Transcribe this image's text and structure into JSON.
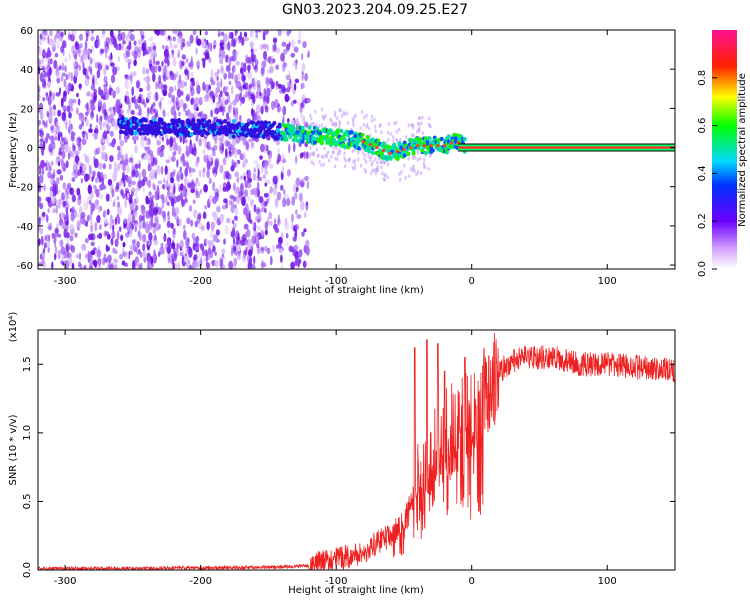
{
  "title": "GN03.2023.204.09.25.E27",
  "colors": {
    "spectrogram_scatter": "#7a22e8",
    "spectrogram_band": "#00ff66",
    "spectrogram_core": "#ff3030",
    "snr_line": "#ee2020"
  },
  "chart_data": [
    {
      "type": "heatmap",
      "xlabel": "Height of straight line (km)",
      "ylabel": "Frequency (Hz)",
      "xlim": [
        -320,
        150
      ],
      "ylim": [
        -62,
        60
      ],
      "x_ticks": [
        -300,
        -200,
        -100,
        0,
        100
      ],
      "x_tick_labels": [
        "-300",
        "-200",
        "-100",
        "0",
        "100"
      ],
      "y_ticks": [
        -60,
        -40,
        -20,
        0,
        20,
        40,
        60
      ],
      "y_tick_labels": [
        "-60",
        "-40",
        "-20",
        "0",
        "20",
        "40",
        "60"
      ],
      "colorbar": {
        "label": "Normalized spectral amplitude",
        "range": [
          0,
          1
        ],
        "ticks": [
          0.0,
          0.2,
          0.4,
          0.6,
          0.8
        ],
        "tick_labels": [
          "0.0",
          "0.2",
          "0.4",
          "0.6",
          "0.8"
        ]
      },
      "ridge": {
        "x": [
          -250,
          -200,
          -150,
          -130,
          -100,
          -80,
          -60,
          -40,
          -20,
          -12,
          0,
          150
        ],
        "y": [
          11,
          10,
          9,
          7,
          5,
          3,
          -3,
          1,
          1,
          3,
          0,
          0
        ]
      }
    },
    {
      "type": "line",
      "xlabel": "Height of straight line (km)",
      "ylabel": "SNR (10 * v/v)",
      "y_multiplier": "(x10⁴)",
      "xlim": [
        -320,
        150
      ],
      "ylim": [
        0,
        1.75
      ],
      "x_ticks": [
        -300,
        -200,
        -100,
        0,
        100
      ],
      "x_tick_labels": [
        "-300",
        "-200",
        "-100",
        "0",
        "100"
      ],
      "y_ticks": [
        0.0,
        0.5,
        1.0,
        1.5
      ],
      "y_tick_labels": [
        "0.0",
        "0.5",
        "1.0",
        "1.5"
      ],
      "series": [
        {
          "x": [
            -320,
            -200,
            -150,
            -120,
            -100,
            -80,
            -70,
            -60,
            -50,
            -40,
            -35,
            -30,
            -20,
            -10,
            0,
            10,
            20,
            30,
            40,
            60,
            80,
            100,
            120,
            150
          ],
          "y": [
            0.01,
            0.015,
            0.02,
            0.03,
            0.08,
            0.12,
            0.2,
            0.25,
            0.35,
            0.62,
            0.75,
            0.85,
            1.0,
            1.05,
            1.15,
            1.3,
            1.45,
            1.52,
            1.55,
            1.55,
            1.5,
            1.5,
            1.48,
            1.45
          ]
        }
      ],
      "spikes": [
        {
          "x": -42,
          "y": 1.62
        },
        {
          "x": -33,
          "y": 1.68
        },
        {
          "x": -25,
          "y": 1.65
        },
        {
          "x": -20,
          "y": 1.45
        },
        {
          "x": -5,
          "y": 1.55
        }
      ]
    }
  ]
}
